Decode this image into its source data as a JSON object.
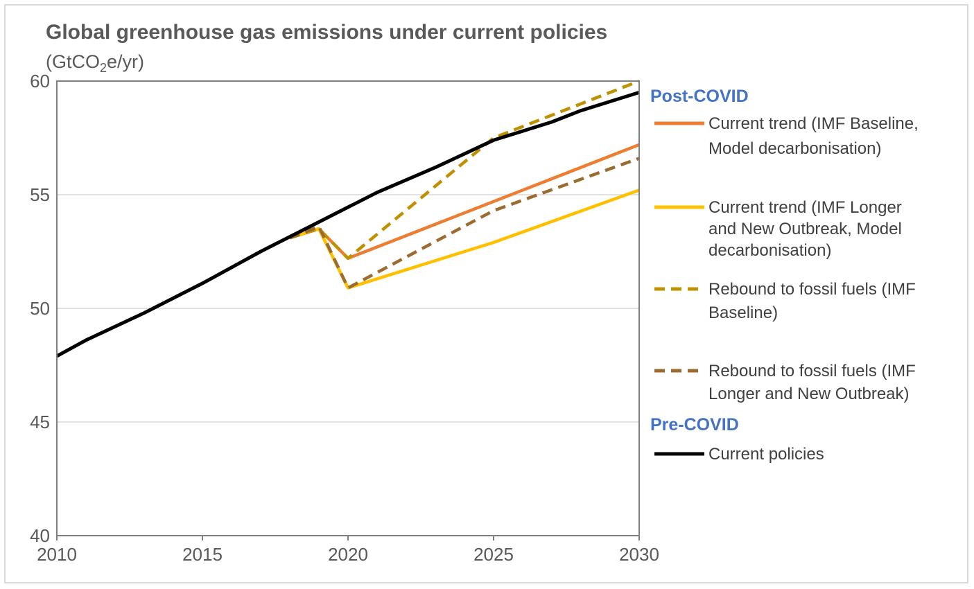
{
  "colors": {
    "current_trend_baseline": "#ED7D31",
    "current_trend_longer": "#FFC000",
    "rebound_baseline": "#BF9000",
    "rebound_longer": "#9C6B30",
    "current_policies": "#000000",
    "group_heading": "#4472C4",
    "gridline": "#d9d9d9",
    "axis": "#7f7f7f"
  },
  "chart_data": {
    "type": "line",
    "title": "Global greenhouse gas emissions under current policies",
    "subtitle_prefix": "(GtCO",
    "subtitle_sub": "2",
    "subtitle_suffix": "e/yr)",
    "xlabel": "",
    "ylabel": "",
    "xlim": [
      2010,
      2030
    ],
    "ylim": [
      40,
      60
    ],
    "xticks": [
      2010,
      2015,
      2020,
      2025,
      2030
    ],
    "yticks": [
      40,
      45,
      50,
      55,
      60
    ],
    "grid": "horizontal",
    "legend_position": "right",
    "legend_groups": [
      {
        "heading": "Post-COVID",
        "series_indices": [
          0,
          1,
          2,
          3
        ]
      },
      {
        "heading": "Pre-COVID",
        "series_indices": [
          4
        ]
      }
    ],
    "series": [
      {
        "name": "Current trend (IMF Baseline, Model decarbonisation)",
        "legend_lines": [
          "Current trend (IMF Baseline,",
          "Model decarbonisation)"
        ],
        "style": "solid",
        "color_key": "current_trend_baseline",
        "x": [
          2018,
          2019,
          2020,
          2023,
          2025,
          2030
        ],
        "y": [
          53.1,
          53.5,
          52.2,
          53.7,
          54.7,
          57.2
        ]
      },
      {
        "name": "Current trend (IMF Longer and New Outbreak, Model decarbonisation)",
        "legend_lines": [
          "Current trend (IMF Longer",
          "and New Outbreak, Model",
          "decarbonisation)"
        ],
        "style": "solid",
        "color_key": "current_trend_longer",
        "x": [
          2018,
          2019,
          2020,
          2025,
          2030
        ],
        "y": [
          53.1,
          53.5,
          50.9,
          52.9,
          55.2
        ]
      },
      {
        "name": "Rebound to fossil fuels (IMF Baseline)",
        "legend_lines": [
          "Rebound to fossil fuels (IMF",
          "Baseline)"
        ],
        "style": "dashed",
        "color_key": "rebound_baseline",
        "x": [
          2018,
          2019,
          2020,
          2025,
          2030
        ],
        "y": [
          53.1,
          53.5,
          52.2,
          57.5,
          60.0
        ]
      },
      {
        "name": "Rebound to fossil fuels (IMF Longer and New Outbreak)",
        "legend_lines": [
          "Rebound to fossil fuels (IMF",
          "Longer and New Outbreak)"
        ],
        "style": "dashed",
        "color_key": "rebound_longer",
        "x": [
          2018,
          2019,
          2020,
          2025,
          2030
        ],
        "y": [
          53.1,
          53.6,
          50.9,
          54.3,
          56.6
        ]
      },
      {
        "name": "Current policies",
        "legend_lines": [
          "Current policies"
        ],
        "style": "solid",
        "color_key": "current_policies",
        "x": [
          2010,
          2011,
          2013,
          2015,
          2017,
          2019,
          2021,
          2023,
          2025,
          2027,
          2028,
          2030
        ],
        "y": [
          47.9,
          48.6,
          49.8,
          51.1,
          52.5,
          53.8,
          55.1,
          56.2,
          57.4,
          58.2,
          58.7,
          59.5
        ]
      }
    ]
  }
}
